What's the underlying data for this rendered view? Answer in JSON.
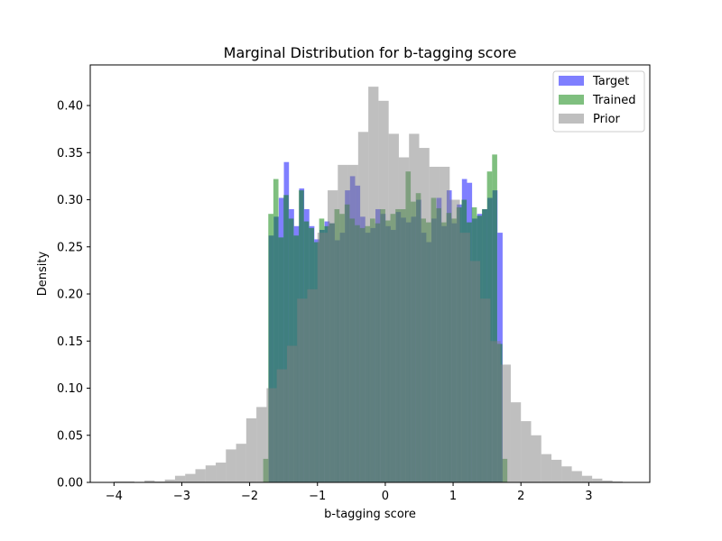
{
  "chart_data": {
    "type": "bar",
    "title": "Marginal Distribution for b-tagging score",
    "xlabel": "b-tagging score",
    "ylabel": "Density",
    "xlim": [
      -4.35,
      3.9
    ],
    "ylim": [
      0,
      0.4431
    ],
    "xticks": [
      -4,
      -3,
      -2,
      -1,
      0,
      1,
      2,
      3
    ],
    "xtick_labels": [
      "−4",
      "−3",
      "−2",
      "−1",
      "0",
      "1",
      "2",
      "3"
    ],
    "yticks": [
      0.0,
      0.05,
      0.1,
      0.15,
      0.2,
      0.25,
      0.3,
      0.35,
      0.4
    ],
    "ytick_labels": [
      "0.00",
      "0.05",
      "0.10",
      "0.15",
      "0.20",
      "0.25",
      "0.30",
      "0.35",
      "0.40"
    ],
    "legend_position": "top-right",
    "series": [
      {
        "name": "Prior",
        "color": "#808080",
        "opacity": 0.5,
        "bin_edges": [
          -4.0,
          -3.85,
          -3.7,
          -3.55,
          -3.4,
          -3.25,
          -3.1,
          -2.95,
          -2.8,
          -2.65,
          -2.5,
          -2.35,
          -2.2,
          -2.05,
          -1.9,
          -1.75,
          -1.6,
          -1.45,
          -1.3,
          -1.15,
          -1.0,
          -0.85,
          -0.7,
          -0.55,
          -0.4,
          -0.25,
          -0.1,
          0.05,
          0.2,
          0.35,
          0.5,
          0.65,
          0.8,
          0.95,
          1.1,
          1.25,
          1.4,
          1.55,
          1.7,
          1.85,
          2.0,
          2.15,
          2.3,
          2.45,
          2.6,
          2.75,
          2.9,
          3.05,
          3.2,
          3.35,
          3.5
        ],
        "values": [
          0.001,
          0.001,
          0.0,
          0.002,
          0.001,
          0.003,
          0.007,
          0.009,
          0.014,
          0.018,
          0.021,
          0.035,
          0.041,
          0.068,
          0.08,
          0.1,
          0.12,
          0.145,
          0.195,
          0.205,
          0.265,
          0.31,
          0.337,
          0.337,
          0.372,
          0.42,
          0.405,
          0.37,
          0.345,
          0.37,
          0.355,
          0.335,
          0.335,
          0.3,
          0.265,
          0.235,
          0.195,
          0.15,
          0.125,
          0.085,
          0.065,
          0.05,
          0.03,
          0.024,
          0.017,
          0.012,
          0.007,
          0.004,
          0.002,
          0.001
        ]
      },
      {
        "name": "Target",
        "color": "#0000ff",
        "opacity": 0.5,
        "bin_edges": [
          -1.72,
          -1.645,
          -1.57,
          -1.495,
          -1.42,
          -1.345,
          -1.27,
          -1.195,
          -1.12,
          -1.045,
          -0.97,
          -0.895,
          -0.82,
          -0.745,
          -0.67,
          -0.595,
          -0.52,
          -0.445,
          -0.37,
          -0.295,
          -0.22,
          -0.145,
          -0.07,
          0.005,
          0.08,
          0.155,
          0.23,
          0.305,
          0.38,
          0.455,
          0.53,
          0.605,
          0.68,
          0.755,
          0.83,
          0.905,
          0.98,
          1.055,
          1.13,
          1.205,
          1.28,
          1.355,
          1.43,
          1.505,
          1.58,
          1.655,
          1.73
        ],
        "values": [
          0.262,
          0.282,
          0.302,
          0.34,
          0.29,
          0.272,
          0.312,
          0.29,
          0.272,
          0.258,
          0.268,
          0.277,
          0.275,
          0.257,
          0.265,
          0.31,
          0.325,
          0.315,
          0.282,
          0.265,
          0.27,
          0.29,
          0.285,
          0.272,
          0.268,
          0.287,
          0.281,
          0.276,
          0.282,
          0.3,
          0.265,
          0.255,
          0.28,
          0.302,
          0.272,
          0.31,
          0.275,
          0.295,
          0.322,
          0.318,
          0.28,
          0.285,
          0.29,
          0.302,
          0.31,
          0.265
        ]
      },
      {
        "name": "Trained",
        "color": "#008000",
        "opacity": 0.5,
        "bin_edges": [
          -1.8,
          -1.725,
          -1.65,
          -1.575,
          -1.5,
          -1.425,
          -1.35,
          -1.275,
          -1.2,
          -1.125,
          -1.05,
          -0.975,
          -0.9,
          -0.825,
          -0.75,
          -0.675,
          -0.6,
          -0.525,
          -0.45,
          -0.375,
          -0.3,
          -0.225,
          -0.15,
          -0.075,
          0.0,
          0.075,
          0.15,
          0.225,
          0.3,
          0.375,
          0.45,
          0.525,
          0.6,
          0.675,
          0.75,
          0.825,
          0.9,
          0.975,
          1.05,
          1.125,
          1.2,
          1.275,
          1.35,
          1.425,
          1.5,
          1.575,
          1.65,
          1.725,
          1.8
        ],
        "values": [
          0.025,
          0.285,
          0.322,
          0.26,
          0.305,
          0.28,
          0.262,
          0.31,
          0.277,
          0.27,
          0.255,
          0.28,
          0.272,
          0.275,
          0.29,
          0.285,
          0.295,
          0.28,
          0.273,
          0.27,
          0.272,
          0.28,
          0.275,
          0.29,
          0.278,
          0.285,
          0.29,
          0.29,
          0.33,
          0.298,
          0.307,
          0.28,
          0.276,
          0.302,
          0.291,
          0.276,
          0.286,
          0.28,
          0.292,
          0.3,
          0.276,
          0.292,
          0.283,
          0.29,
          0.33,
          0.348,
          0.147,
          0.025
        ]
      }
    ]
  }
}
